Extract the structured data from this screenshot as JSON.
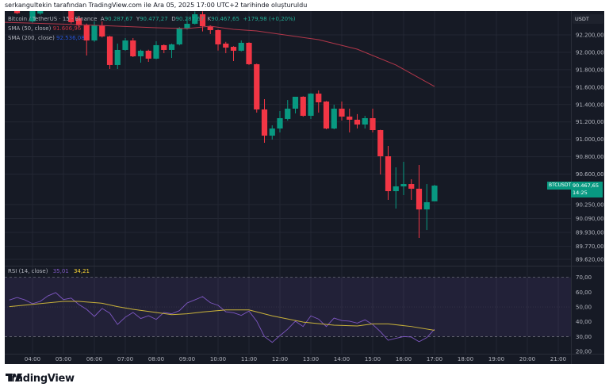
{
  "caption": "serkangultekin tarafından TradingView.com ile Ara 05, 2025 17:00 UTC+2 tarihinde oluşturuldu",
  "legend": {
    "symbol": "Bitcoin / TetherUS · 15 · Binance",
    "open_label": "A",
    "open": "90.287,67",
    "high_label": "Y",
    "high": "90.477,27",
    "low_label": "D",
    "low": "90.287,67",
    "close_label": "K",
    "close": "90.467,65",
    "change": "+179,98 (+0,20%)",
    "sma50_label": "SMA (50, close)",
    "sma50_value": "91.606,96",
    "sma200_label": "SMA (200, close)",
    "sma200_value": "92.536,08"
  },
  "rsi_legend": {
    "label": "RSI (14, close)",
    "rsi_value": "35,01",
    "ma_value": "34,21"
  },
  "currency": "USDT",
  "last_price": {
    "symbol_tag": "BTCUSDT",
    "price": "90.467,65",
    "countdown": "14:25"
  },
  "colors": {
    "up": "#089981",
    "down": "#f23645",
    "sma50": "#b2374a",
    "rsi": "#7e57c2",
    "rsi_ma": "#c9b23a",
    "background": "#161a25"
  },
  "footer": {
    "brand": "TradingView",
    "logo_icon": "tradingview-logo-icon"
  },
  "chart_data": [
    {
      "type": "candlestick",
      "price_axis_ticks": [
        "92.200,00",
        "92.000,00",
        "91.800,00",
        "91.600,00",
        "91.400,00",
        "91.200,00",
        "91.000,00",
        "90.800,00",
        "90.600,00",
        "90.250,00",
        "90.090,00",
        "89.930,00",
        "89.770,00",
        "89.620,00"
      ],
      "price_tick_values": [
        92200,
        92000,
        91800,
        91600,
        91400,
        91200,
        91000,
        90800,
        90600,
        90250,
        90090,
        89930,
        89770,
        89620
      ],
      "time_axis_ticks": [
        "04:00",
        "05:00",
        "06:00",
        "07:00",
        "08:00",
        "09:00",
        "10:00",
        "11:00",
        "12:00",
        "13:00",
        "14:00",
        "15:00",
        "16:00",
        "17:00",
        "18:00",
        "19:00",
        "20:00",
        "21:00"
      ],
      "ohlc_fields": [
        "time",
        "open",
        "high",
        "low",
        "close"
      ],
      "candles": [
        [
          "03:30",
          92520,
          92560,
          92440,
          92450
        ],
        [
          "04:00",
          92355,
          92560,
          92340,
          92520
        ],
        [
          "04:15",
          92446,
          92560,
          92430,
          92520
        ],
        [
          "05:15",
          92520,
          92560,
          92330,
          92346
        ],
        [
          "05:30",
          92391,
          92420,
          92290,
          92309
        ],
        [
          "05:45",
          92309,
          92330,
          91963,
          92136
        ],
        [
          "06:00",
          92136,
          92355,
          92120,
          92309
        ],
        [
          "06:15",
          92309,
          92355,
          92170,
          92182
        ],
        [
          "06:30",
          92182,
          92190,
          91808,
          91854
        ],
        [
          "06:45",
          91854,
          92100,
          91808,
          92027
        ],
        [
          "07:00",
          92027,
          92164,
          92018,
          92136
        ],
        [
          "07:15",
          92136,
          92164,
          91945,
          91954
        ],
        [
          "07:30",
          91954,
          92030,
          91881,
          92018
        ],
        [
          "07:45",
          92018,
          92030,
          91890,
          91927
        ],
        [
          "08:00",
          91927,
          92127,
          91920,
          92082
        ],
        [
          "08:15",
          92082,
          92091,
          91990,
          92027
        ],
        [
          "08:30",
          92027,
          92100,
          91936,
          92091
        ],
        [
          "08:45",
          92091,
          92290,
          92080,
          92273
        ],
        [
          "09:00",
          92273,
          92410,
          92260,
          92328
        ],
        [
          "09:15",
          92328,
          92470,
          92320,
          92437
        ],
        [
          "09:30",
          92437,
          92470,
          92240,
          92300
        ],
        [
          "09:45",
          92300,
          92310,
          92210,
          92255
        ],
        [
          "10:00",
          92255,
          92260,
          92020,
          92091
        ],
        [
          "10:15",
          92100,
          92120,
          91990,
          92054
        ],
        [
          "10:30",
          92063,
          92070,
          91899,
          92018
        ],
        [
          "10:45",
          92018,
          92136,
          92010,
          92109
        ],
        [
          "11:00",
          92109,
          92115,
          91855,
          91863
        ],
        [
          "11:15",
          91863,
          91870,
          91307,
          91343
        ],
        [
          "11:30",
          91343,
          91462,
          90960,
          91042
        ],
        [
          "11:45",
          91042,
          91161,
          90997,
          91124
        ],
        [
          "12:00",
          91124,
          91325,
          91079,
          91243
        ],
        [
          "12:15",
          91234,
          91452,
          91215,
          91352
        ],
        [
          "12:30",
          91352,
          91489,
          91297,
          91489
        ],
        [
          "12:45",
          91489,
          91495,
          91260,
          91270
        ],
        [
          "13:00",
          91270,
          91530,
          91234,
          91525
        ],
        [
          "13:15",
          91525,
          91562,
          91307,
          91425
        ],
        [
          "13:30",
          91434,
          91440,
          91115,
          91124
        ],
        [
          "13:45",
          91124,
          91398,
          91115,
          91352
        ],
        [
          "14:00",
          91352,
          91434,
          91215,
          91261
        ],
        [
          "14:15",
          91261,
          91352,
          91079,
          91225
        ],
        [
          "14:30",
          91225,
          91290,
          91124,
          91170
        ],
        [
          "14:45",
          91170,
          91270,
          91124,
          91243
        ],
        [
          "15:00",
          91243,
          91352,
          91079,
          91106
        ],
        [
          "15:15",
          91106,
          91110,
          90596,
          90805
        ],
        [
          "15:30",
          90805,
          90924,
          90304,
          90404
        ],
        [
          "15:45",
          90404,
          90678,
          90204,
          90459
        ],
        [
          "16:00",
          90459,
          90741,
          90359,
          90486
        ],
        [
          "16:15",
          90486,
          90541,
          90304,
          90432
        ],
        [
          "16:30",
          90432,
          90705,
          89866,
          90194
        ],
        [
          "16:45",
          90194,
          90486,
          89957,
          90277
        ],
        [
          "17:00",
          90287.67,
          90477.27,
          90287.67,
          90467.65
        ]
      ],
      "sma50": [
        [
          "03:00",
          92346
        ],
        [
          "05:30",
          92318
        ],
        [
          "06:45",
          92300
        ],
        [
          "08:00",
          92282
        ],
        [
          "09:00",
          92273
        ],
        [
          "09:45",
          92300
        ],
        [
          "10:30",
          92264
        ],
        [
          "11:15",
          92246
        ],
        [
          "13:15",
          92145
        ],
        [
          "14:30",
          92036
        ],
        [
          "15:45",
          91854
        ],
        [
          "17:00",
          91606.96
        ]
      ]
    },
    {
      "type": "line",
      "title": "RSI (14, close)",
      "rsi_axis_ticks": [
        "70,00",
        "60,00",
        "50,00",
        "40,00",
        "30,00",
        "20,00"
      ],
      "rsi_tick_values": [
        70,
        60,
        50,
        40,
        30,
        20
      ],
      "band": [
        30,
        70
      ],
      "rsi_start_time": "03:15",
      "rsi_interval_minutes": 15,
      "rsi": [
        54.7,
        56.4,
        54.8,
        52.2,
        53.8,
        57.5,
        59.7,
        55,
        56,
        51.6,
        48.4,
        43.6,
        49,
        45.8,
        38.2,
        43.1,
        46.3,
        42.2,
        44.1,
        41.6,
        46.3,
        45.4,
        47.5,
        52.7,
        54.8,
        57,
        52.9,
        51.1,
        46.8,
        46.1,
        44.3,
        47.2,
        40.4,
        30,
        26.1,
        30.6,
        35,
        40.4,
        36.8,
        44,
        41.8,
        36.8,
        42.5,
        40.8,
        40.4,
        39.1,
        41.3,
        38.2,
        33.3,
        27.5,
        28.8,
        30,
        29.7,
        26.5,
        29.3,
        35.01
      ],
      "rsi_ma": [
        [
          "03:15",
          50.2
        ],
        [
          "05:00",
          53.8
        ],
        [
          "05:30",
          53.8
        ],
        [
          "06:15",
          52.5
        ],
        [
          "06:45",
          50.2
        ],
        [
          "07:15",
          48.4
        ],
        [
          "08:00",
          46.3
        ],
        [
          "08:30",
          44.8
        ],
        [
          "09:00",
          45.4
        ],
        [
          "09:30",
          46.6
        ],
        [
          "10:15",
          48
        ],
        [
          "11:00",
          48
        ],
        [
          "11:45",
          44
        ],
        [
          "12:45",
          39.8
        ],
        [
          "13:45",
          37.7
        ],
        [
          "14:30",
          37.2
        ],
        [
          "15:00",
          38.6
        ],
        [
          "15:30",
          38.6
        ],
        [
          "16:15",
          36.8
        ],
        [
          "17:00",
          34.21
        ]
      ]
    }
  ]
}
